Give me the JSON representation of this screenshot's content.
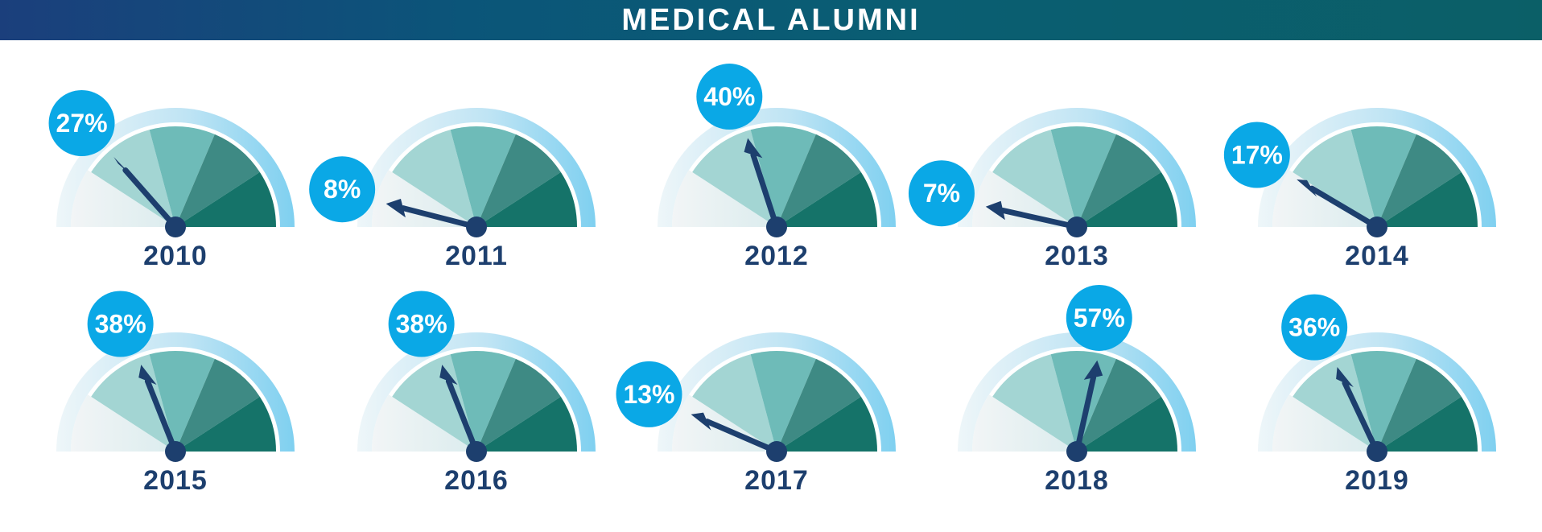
{
  "header": {
    "title": "MEDICAL ALUMNI"
  },
  "colors": {
    "header_start": "#1b3f7c",
    "header_end": "#0b5f67",
    "badge": "#0aa8e6",
    "needle": "#1d3f6e",
    "outer_ring": "#7fd0f0",
    "segments": [
      "#dcecef",
      "#a3d5d3",
      "#6ebbb8",
      "#3e8a84",
      "#157369"
    ]
  },
  "chart_data": {
    "type": "gauge",
    "title": "MEDICAL ALUMNI",
    "unit": "%",
    "range": [
      0,
      100
    ],
    "categories": [
      "2010",
      "2011",
      "2012",
      "2013",
      "2014",
      "2015",
      "2016",
      "2017",
      "2018",
      "2019"
    ],
    "values": [
      27,
      8,
      40,
      7,
      17,
      38,
      38,
      13,
      57,
      36
    ],
    "value_labels": [
      "27%",
      "8%",
      "40%",
      "7%",
      "17%",
      "38%",
      "38%",
      "13%",
      "57%",
      "36%"
    ]
  }
}
